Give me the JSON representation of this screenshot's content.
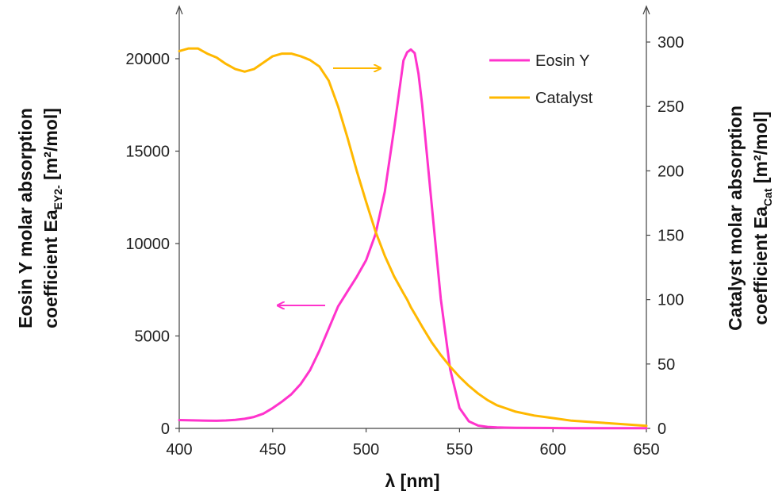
{
  "chart_data": {
    "type": "line",
    "x": [
      400,
      405,
      410,
      415,
      420,
      425,
      430,
      435,
      440,
      445,
      450,
      455,
      460,
      465,
      470,
      475,
      480,
      485,
      490,
      495,
      500,
      505,
      510,
      515,
      520,
      522,
      524,
      526,
      528,
      530,
      535,
      540,
      545,
      550,
      555,
      560,
      565,
      570,
      580,
      590,
      600,
      610,
      620,
      630,
      640,
      650
    ],
    "xlabel": "λ [nm]",
    "xlim": [
      400,
      650
    ],
    "xticks": [
      "400",
      "450",
      "500",
      "550",
      "600",
      "650"
    ],
    "y_left": {
      "label_line1": "Eosin Y molar absorption",
      "label_line2_main": "coefficient Ea",
      "label_line2_sub": "EY2-",
      "label_line2_unit": " [m²/mol]",
      "lim": [
        0,
        20000
      ],
      "ticks": [
        "0",
        "5000",
        "10000",
        "15000",
        "20000"
      ]
    },
    "y_right": {
      "label_line1": "Catalyst molar absorption",
      "label_line2_main": "coefficient Ea",
      "label_line2_sub": "Cat",
      "label_line2_unit": " [m²/mol]",
      "lim": [
        0,
        300
      ],
      "ticks": [
        "0",
        "50",
        "100",
        "150",
        "200",
        "250",
        "300"
      ]
    },
    "series": [
      {
        "name": "Eosin Y",
        "axis": "left",
        "color": "#ff33cc",
        "values": [
          450,
          440,
          430,
          420,
          410,
          430,
          460,
          520,
          620,
          800,
          1100,
          1450,
          1850,
          2400,
          3150,
          4200,
          5400,
          6600,
          7400,
          8200,
          9100,
          10500,
          12800,
          16200,
          19900,
          20350,
          20500,
          20300,
          19200,
          17500,
          12200,
          7000,
          3200,
          1100,
          380,
          150,
          80,
          50,
          30,
          25,
          20,
          15,
          10,
          10,
          10,
          10
        ]
      },
      {
        "name": "Catalyst",
        "axis": "right",
        "color": "#ffb800",
        "values": [
          293,
          295,
          295,
          291,
          288,
          283,
          279,
          277,
          279,
          284,
          289,
          291,
          291,
          289,
          286,
          281,
          270,
          250,
          226,
          200,
          176,
          153,
          134,
          118,
          105,
          100,
          94,
          89,
          84,
          79,
          67,
          57,
          48,
          40,
          33,
          27,
          22,
          18,
          13,
          10,
          8,
          6,
          5,
          4,
          3,
          2
        ]
      }
    ],
    "annotations": {
      "right_arrow_color": "#ffb800",
      "left_arrow_color": "#ff33cc"
    },
    "legend": {
      "placement": "top-right",
      "entries": [
        "Eosin Y",
        "Catalyst"
      ]
    },
    "grid": false
  }
}
